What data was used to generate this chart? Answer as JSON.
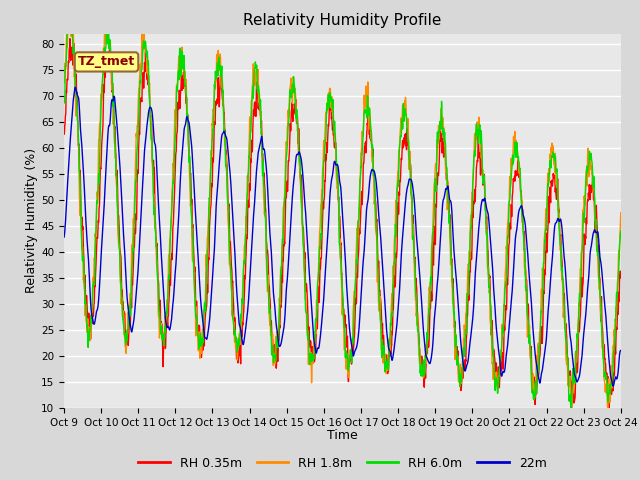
{
  "title": "Relativity Humidity Profile",
  "xlabel": "Time",
  "ylabel": "Relativity Humidity (%)",
  "ylim": [
    10,
    82
  ],
  "yticks": [
    10,
    15,
    20,
    25,
    30,
    35,
    40,
    45,
    50,
    55,
    60,
    65,
    70,
    75,
    80
  ],
  "annotation_text": "TZ_tmet",
  "line_colors": {
    "RH 0.35m": "#ff0000",
    "RH 1.8m": "#ff8c00",
    "RH 6.0m": "#00dd00",
    "22m": "#0000cc"
  },
  "legend_labels": [
    "RH 0.35m",
    "RH 1.8m",
    "RH 6.0m",
    "22m"
  ],
  "xtick_labels": [
    "Oct 9",
    "Oct 10",
    "Oct 11",
    "Oct 12",
    "Oct 13",
    "Oct 14",
    "Oct 15",
    "Oct 16",
    "Oct 17",
    "Oct 18",
    "Oct 19",
    "Oct 20",
    "Oct 21",
    "Oct 22",
    "Oct 23",
    "Oct 24"
  ],
  "background_color": "#d8d8d8",
  "plot_background": "#e8e8e8",
  "grid_color": "#ffffff",
  "n_days": 15,
  "pts_per_day": 144
}
